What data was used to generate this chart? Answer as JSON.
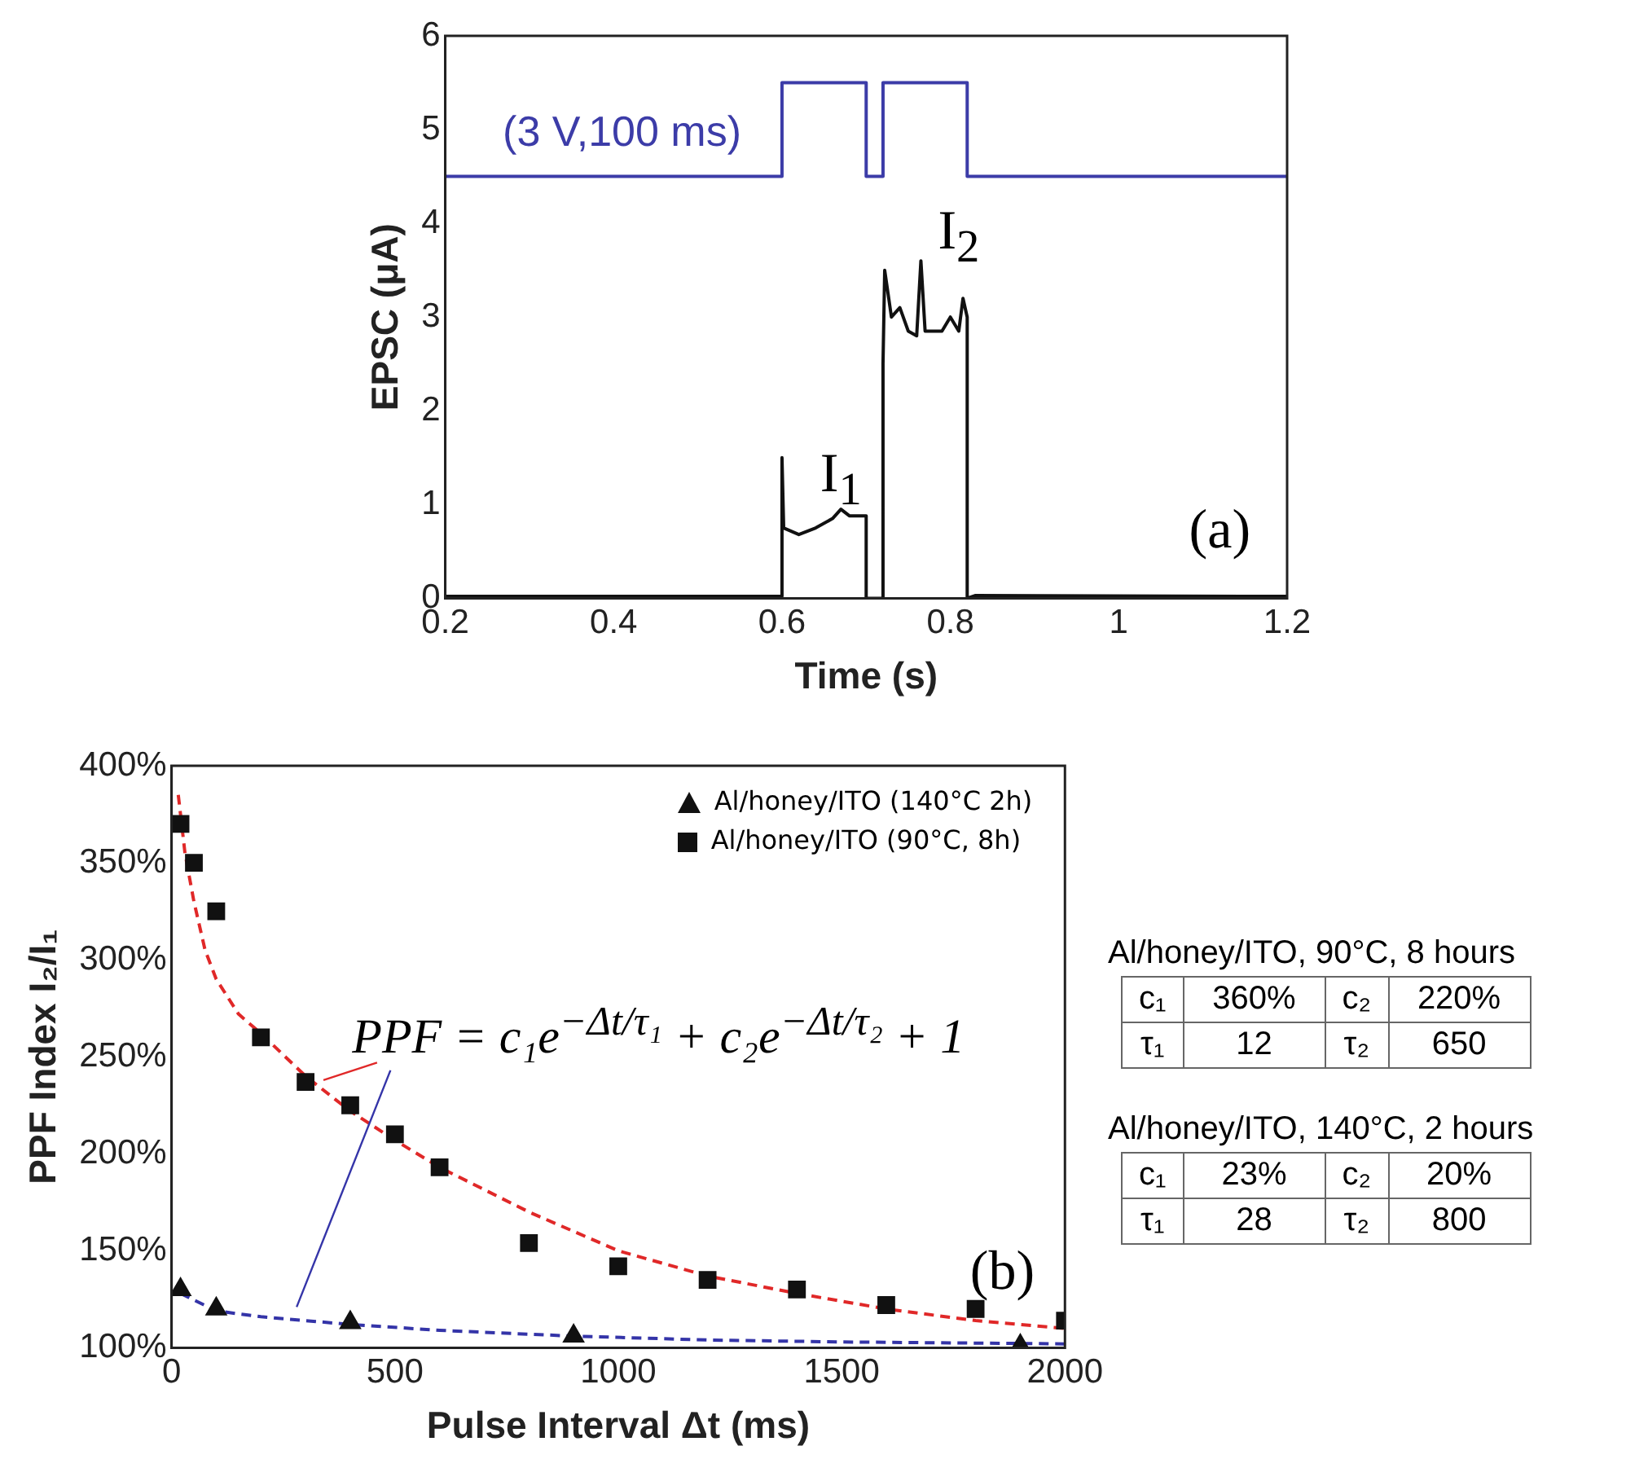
{
  "chart_data": [
    {
      "type": "line",
      "xlabel": "Time (s)",
      "ylabel": "EPSC (μA)",
      "xlim": [
        0.2,
        1.2
      ],
      "xticks": [
        0.2,
        0.4,
        0.6,
        0.8,
        1,
        1.2
      ],
      "ylim": [
        0,
        6
      ],
      "yticks": [
        0,
        1,
        2,
        3,
        4,
        5,
        6
      ],
      "marker": "none",
      "series": [
        {
          "color": "#111111",
          "x": [
            0.2,
            0.6,
            0.6,
            0.602,
            0.62,
            0.64,
            0.66,
            0.67,
            0.68,
            0.7,
            0.7,
            0.72,
            0.72,
            0.722,
            0.73,
            0.74,
            0.75,
            0.76,
            0.765,
            0.77,
            0.79,
            0.8,
            0.81,
            0.815,
            0.82,
            0.82,
            0.83,
            1.2
          ],
          "values": [
            0.02,
            0.02,
            1.5,
            0.75,
            0.68,
            0.75,
            0.85,
            0.95,
            0.88,
            0.88,
            0,
            0,
            2.5,
            3.5,
            3.0,
            3.1,
            2.85,
            2.8,
            3.6,
            2.85,
            2.85,
            3.0,
            2.85,
            3.2,
            3.0,
            0,
            0.03,
            0.02
          ]
        },
        {
          "color": "#3c3ca8",
          "x": [
            0.2,
            0.6,
            0.6,
            0.7,
            0.7,
            0.72,
            0.72,
            0.82,
            0.82,
            1.2
          ],
          "values": [
            4.5,
            4.5,
            5.5,
            5.5,
            4.5,
            4.5,
            5.5,
            5.5,
            4.5,
            4.5
          ]
        }
      ],
      "annotations": [
        "(3 V,100 ms)",
        "I$_{1}$",
        "I$_{2}$",
        "(a)"
      ]
    },
    {
      "type": "scatter",
      "xlabel": "Pulse Interval Δt (ms)",
      "ylabel": "PPF Index I₂/I₁",
      "xlim": [
        0,
        2000
      ],
      "xticks": [
        0,
        500,
        1000,
        1500,
        2000
      ],
      "ylim": [
        100,
        400
      ],
      "yticks": [
        {
          "value": 100,
          "label": "100%"
        },
        {
          "value": 150,
          "label": "150%"
        },
        {
          "value": 200,
          "label": "200%"
        },
        {
          "value": 250,
          "label": "250%"
        },
        {
          "value": 300,
          "label": "300%"
        },
        {
          "value": 350,
          "label": "350%"
        },
        {
          "value": 400,
          "label": "400%"
        }
      ],
      "legend": "top right",
      "series": [
        {
          "name": "Al/honey/ITO (140°C 2h)",
          "color": "#111111",
          "marker": "triangle",
          "x": [
            20,
            100,
            400,
            900,
            1900
          ],
          "values": [
            130,
            120,
            113,
            106,
            101
          ]
        },
        {
          "name": "Al/honey/ITO (90°C, 8h)",
          "color": "#111111",
          "marker": "square",
          "x": [
            20,
            50,
            100,
            200,
            300,
            400,
            500,
            600,
            800,
            1000,
            1200,
            1400,
            1600,
            1800,
            2000
          ],
          "values": [
            370,
            350,
            325,
            260,
            237,
            225,
            210,
            193,
            154,
            142,
            135,
            130,
            122,
            120,
            114
          ]
        },
        {
          "type": "line",
          "color": "#e02828",
          "marker": "none",
          "line_style": "dashed",
          "x": [
            15,
            30,
            50,
            75,
            100,
            150,
            200,
            300,
            400,
            500,
            600,
            800,
            1000,
            1200,
            1400,
            1600,
            1800,
            2000
          ],
          "values": [
            385,
            355,
            330,
            305,
            290,
            272,
            262,
            240,
            222,
            207,
            193,
            170,
            150,
            137,
            128,
            120,
            114,
            110
          ]
        },
        {
          "type": "line",
          "color": "#3434a8",
          "marker": "none",
          "line_style": "dashed",
          "x": [
            20,
            100,
            200,
            400,
            600,
            900,
            1200,
            1500,
            2000
          ],
          "values": [
            128,
            119,
            116,
            112,
            109,
            106,
            104,
            103,
            102
          ]
        }
      ],
      "annotations": [
        "PPF = c₁e$^{−Δt/τ₁}$ + c₂e$^{−Δt/τ₂}$ + 1",
        "(b)"
      ]
    },
    {
      "type": "other",
      "title": "Al/honey/ITO, 90°C, 8 hours",
      "annotations": [
        "c₁",
        "360%",
        "c₂",
        "220%",
        "τ₁",
        "12",
        "τ₂",
        "650"
      ]
    },
    {
      "type": "other",
      "title": "Al/honey/ITO, 140°C, 2 hours",
      "annotations": [
        "c₁",
        "23%",
        "c₂",
        "20%",
        "τ₁",
        "28",
        "τ₂",
        "800"
      ]
    }
  ]
}
